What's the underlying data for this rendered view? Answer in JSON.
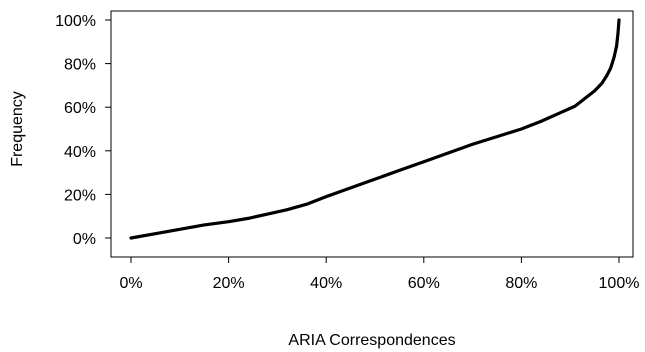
{
  "chart_data": {
    "type": "line",
    "title": "",
    "xlabel": "ARIA Correspondences",
    "ylabel": "Frequency",
    "xlim": [
      0,
      100
    ],
    "ylim": [
      0,
      100
    ],
    "x_ticks": [
      "0%",
      "20%",
      "40%",
      "60%",
      "80%",
      "100%"
    ],
    "y_ticks": [
      "0%",
      "20%",
      "40%",
      "60%",
      "80%",
      "100%"
    ],
    "grid": false,
    "line_color": "#000000",
    "series": [
      {
        "x": [
          0,
          5,
          10,
          15,
          20,
          24,
          28,
          32,
          36,
          40,
          45,
          50,
          55,
          60,
          65,
          70,
          75,
          80,
          84,
          88,
          91,
          93,
          95,
          96.5,
          97.5,
          98.3,
          99,
          99.5,
          99.8,
          100
        ],
        "y": [
          0,
          2,
          4,
          6,
          7.5,
          9,
          11,
          13,
          15.5,
          19,
          23,
          27,
          31,
          35,
          39,
          43,
          46.5,
          50,
          53.5,
          57.5,
          60.5,
          64,
          67.5,
          71,
          74.5,
          78,
          83,
          88,
          94,
          100
        ]
      }
    ]
  }
}
